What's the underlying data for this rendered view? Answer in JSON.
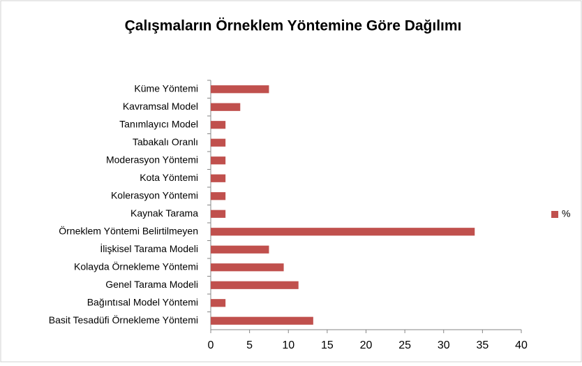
{
  "chart_data": {
    "type": "bar",
    "orientation": "horizontal",
    "title": "Çalışmaların Örneklem Yöntemine Göre Dağılımı",
    "categories": [
      "Küme Yöntemi",
      "Kavramsal Model",
      "Tanımlayıcı Model",
      "Tabakalı Oranlı",
      "Moderasyon Yöntemi",
      "Kota Yöntemi",
      "Kolerasyon Yöntemi",
      "Kaynak Tarama",
      "Örneklem Yöntemi Belirtilmeyen",
      "İlişkisel Tarama Modeli",
      "Kolayda Örnekleme Yöntemi",
      "Genel Tarama Modeli",
      "Bağıntısal Model Yöntemi",
      "Basit Tesadüfi Örnekleme Yöntemi"
    ],
    "series": [
      {
        "name": "%",
        "color": "#c0504d",
        "values": [
          7.5,
          3.8,
          1.9,
          1.9,
          1.9,
          1.9,
          1.9,
          1.9,
          34,
          7.5,
          9.4,
          11.3,
          1.9,
          13.2
        ]
      }
    ],
    "xlim": [
      0,
      40
    ],
    "xticks": [
      0,
      5,
      10,
      15,
      20,
      25,
      30,
      35,
      40
    ],
    "grid": false,
    "legend": "right"
  }
}
